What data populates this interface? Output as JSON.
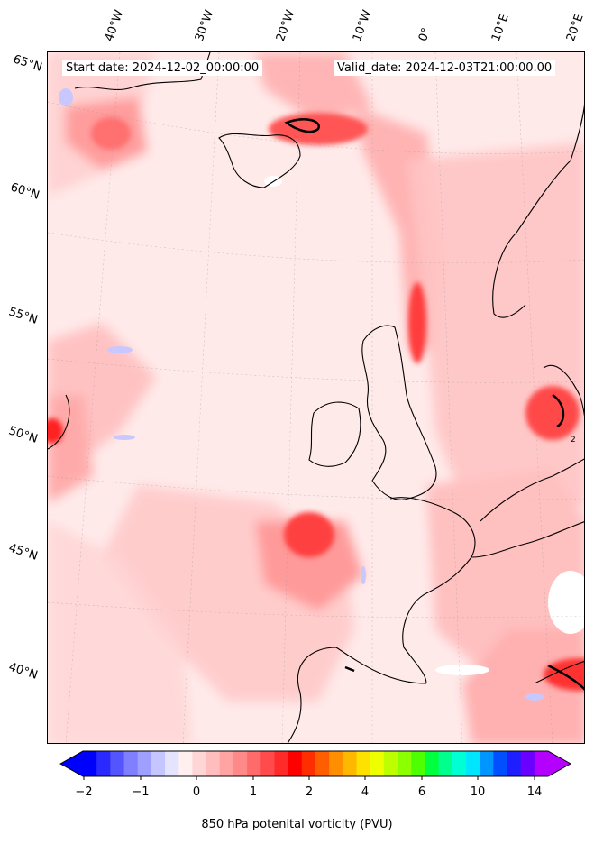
{
  "map": {
    "start_label": "Start date: 2024-12-02_00:00:00",
    "valid_label": "Valid_date: 2024-12-03T21:00:00.00",
    "lat_labels": [
      "65°N",
      "60°N",
      "55°N",
      "50°N",
      "45°N",
      "40°N"
    ],
    "lon_labels": [
      "40°W",
      "30°W",
      "20°W",
      "10°W",
      "0°",
      "10°E",
      "20°E"
    ],
    "contour_label": "2"
  },
  "colorbar": {
    "label": "850 hPa potenital vorticity (PVU)",
    "ticks": [
      "−2",
      "−1",
      "0",
      "1",
      "2",
      "4",
      "6",
      "10",
      "14"
    ],
    "colors": [
      "#0000ff",
      "#2a2aff",
      "#5555ff",
      "#7f7fff",
      "#9f9fff",
      "#c5c5ff",
      "#e4e4ff",
      "#ffefef",
      "#ffd6d6",
      "#ffbdbd",
      "#ffa3a3",
      "#ff8888",
      "#ff6b6b",
      "#ff4b4b",
      "#ff2a2a",
      "#ff0000",
      "#ff2e00",
      "#ff5e00",
      "#ff8e00",
      "#ffb800",
      "#ffe100",
      "#eeff00",
      "#bdff00",
      "#8cff00",
      "#4dff00",
      "#00ff3c",
      "#00ff8c",
      "#00ffd2",
      "#00e6ff",
      "#0096ff",
      "#0050ff",
      "#1e1eff",
      "#6a00ff",
      "#b400ff"
    ]
  }
}
